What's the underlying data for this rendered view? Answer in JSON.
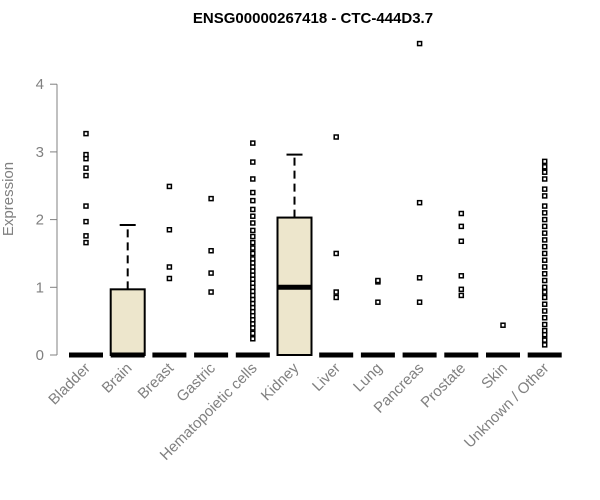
{
  "chart_data": {
    "type": "box",
    "title": "ENSG00000267418 - CTC-444D3.7",
    "xlabel": "",
    "ylabel": "Expression",
    "ylim": [
      0,
      4.5
    ],
    "yticks": [
      0,
      1,
      2,
      3,
      4
    ],
    "box_fill": "#ede6cc",
    "categories": [
      "Bladder",
      "Brain",
      "Breast",
      "Gastric",
      "Hematopoietic cells",
      "Kidney",
      "Liver",
      "Lung",
      "Pancreas",
      "Prostate",
      "Skin",
      "Unknown / Other"
    ],
    "boxes": [
      {
        "category": "Bladder",
        "q1": 0,
        "median": 0,
        "q3": 0,
        "whisker_low": 0,
        "whisker_high": 0,
        "outliers": [
          1.66,
          1.76,
          1.97,
          2.2,
          2.65,
          2.76,
          2.9,
          2.96,
          3.27
        ]
      },
      {
        "category": "Brain",
        "q1": 0,
        "median": 0,
        "q3": 0.97,
        "whisker_low": 0,
        "whisker_high": 1.92,
        "outliers": []
      },
      {
        "category": "Breast",
        "q1": 0,
        "median": 0,
        "q3": 0,
        "whisker_low": 0,
        "whisker_high": 0,
        "outliers": [
          1.13,
          1.3,
          1.85,
          2.49
        ]
      },
      {
        "category": "Gastric",
        "q1": 0,
        "median": 0,
        "q3": 0,
        "whisker_low": 0,
        "whisker_high": 0,
        "outliers": [
          0.93,
          1.21,
          1.54,
          2.31
        ]
      },
      {
        "category": "Hematopoietic cells",
        "q1": 0,
        "median": 0,
        "q3": 0,
        "whisker_low": 0,
        "whisker_high": 0,
        "outliers": [
          0.24,
          0.32,
          0.4,
          0.46,
          0.52,
          0.58,
          0.64,
          0.7,
          0.76,
          0.82,
          0.88,
          0.94,
          1.0,
          1.06,
          1.12,
          1.18,
          1.24,
          1.3,
          1.36,
          1.42,
          1.5,
          1.58,
          1.66,
          1.75,
          1.84,
          1.95,
          2.05,
          2.15,
          2.28,
          2.4,
          2.6,
          2.85,
          3.13
        ]
      },
      {
        "category": "Kidney",
        "q1": 0,
        "median": 1.0,
        "q3": 2.03,
        "whisker_low": 0,
        "whisker_high": 2.96,
        "outliers": []
      },
      {
        "category": "Liver",
        "q1": 0,
        "median": 0,
        "q3": 0,
        "whisker_low": 0,
        "whisker_high": 0,
        "outliers": [
          0.85,
          0.93,
          1.5,
          3.22
        ]
      },
      {
        "category": "Lung",
        "q1": 0,
        "median": 0,
        "q3": 0,
        "whisker_low": 0,
        "whisker_high": 0,
        "outliers": [
          0.78,
          1.08,
          1.1
        ]
      },
      {
        "category": "Pancreas",
        "q1": 0,
        "median": 0,
        "q3": 0,
        "whisker_low": 0,
        "whisker_high": 0,
        "outliers": [
          0.78,
          1.14,
          2.25,
          4.6
        ]
      },
      {
        "category": "Prostate",
        "q1": 0,
        "median": 0,
        "q3": 0,
        "whisker_low": 0,
        "whisker_high": 0,
        "outliers": [
          0.88,
          0.97,
          1.17,
          1.68,
          1.9,
          2.09
        ]
      },
      {
        "category": "Skin",
        "q1": 0,
        "median": 0,
        "q3": 0,
        "whisker_low": 0,
        "whisker_high": 0,
        "outliers": [
          0.44
        ]
      },
      {
        "category": "Unknown / Other",
        "q1": 0,
        "median": 0,
        "q3": 0,
        "whisker_low": 0,
        "whisker_high": 0,
        "outliers": [
          0.15,
          0.22,
          0.3,
          0.36,
          0.45,
          0.55,
          0.65,
          0.75,
          0.85,
          0.93,
          1.0,
          1.1,
          1.2,
          1.3,
          1.4,
          1.5,
          1.6,
          1.7,
          1.8,
          1.9,
          2.0,
          2.1,
          2.2,
          2.35,
          2.45,
          2.6,
          2.7,
          2.78,
          2.86
        ]
      }
    ]
  }
}
